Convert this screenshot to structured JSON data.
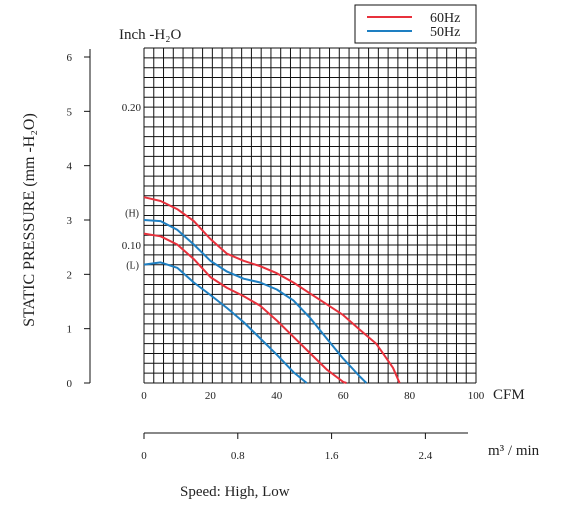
{
  "chart_data": {
    "type": "line",
    "top_label": "Inch -H₂O",
    "inch_ticks": [
      "0.20",
      "0.10"
    ],
    "ylabel": "STATIC PRESSURE (mm -H₂O)",
    "ylim": [
      0,
      6
    ],
    "y_ticks": [
      "0",
      "1",
      "2",
      "3",
      "4",
      "5",
      "6"
    ],
    "xlim": [
      0,
      100
    ],
    "x_ticks": [
      "0",
      "20",
      "40",
      "60",
      "80",
      "100"
    ],
    "xlabel": "CFM",
    "m3_ticks": [
      "0",
      "0.8",
      "1.6",
      "2.4"
    ],
    "m3_unit": "m³ / min",
    "speed_marks": [
      "(H)",
      "(L)"
    ],
    "caption": "Speed: High, Low",
    "colors": {
      "60Hz": "#e8313c",
      "50Hz": "#1e7fc2"
    },
    "series": [
      {
        "name": "60Hz",
        "speed": "High",
        "x": [
          0,
          5,
          10,
          15,
          20,
          25,
          30,
          35,
          40,
          45,
          50,
          55,
          60,
          65,
          70,
          75,
          77
        ],
        "y": [
          3.42,
          3.35,
          3.2,
          2.98,
          2.65,
          2.38,
          2.25,
          2.15,
          2.02,
          1.85,
          1.65,
          1.45,
          1.25,
          0.98,
          0.72,
          0.28,
          0
        ]
      },
      {
        "name": "50Hz",
        "speed": "High",
        "x": [
          0,
          5,
          10,
          15,
          20,
          25,
          30,
          35,
          40,
          45,
          50,
          55,
          60,
          65,
          67
        ],
        "y": [
          3.0,
          2.98,
          2.82,
          2.55,
          2.25,
          2.05,
          1.92,
          1.85,
          1.72,
          1.52,
          1.2,
          0.82,
          0.45,
          0.12,
          0
        ]
      },
      {
        "name": "60Hz",
        "speed": "Low",
        "x": [
          0,
          5,
          10,
          15,
          20,
          25,
          30,
          35,
          40,
          45,
          50,
          55,
          60,
          61
        ],
        "y": [
          2.75,
          2.7,
          2.55,
          2.28,
          1.95,
          1.75,
          1.6,
          1.42,
          1.15,
          0.85,
          0.55,
          0.25,
          0.02,
          0
        ]
      },
      {
        "name": "50Hz",
        "speed": "Low",
        "x": [
          0,
          5,
          10,
          15,
          20,
          25,
          30,
          35,
          40,
          45,
          49
        ],
        "y": [
          2.18,
          2.22,
          2.12,
          1.85,
          1.62,
          1.38,
          1.12,
          0.82,
          0.52,
          0.2,
          0
        ]
      }
    ]
  }
}
